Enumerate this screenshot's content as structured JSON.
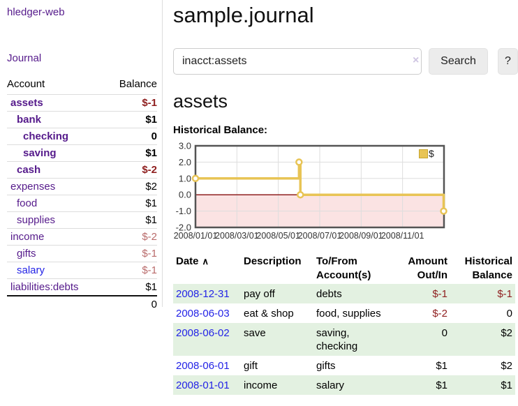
{
  "colors": {
    "link_purple": "#551a8b",
    "link_blue": "#2323e6",
    "negative_red": "#8f1f1f",
    "negative_soft_red": "#b96b6b",
    "row_stripe_green": "#e3f1e1",
    "chart_gold": "#e8c455",
    "chart_negative_fill": "#fbe3e3",
    "chart_zero_line": "#8f1f1f"
  },
  "sidebar": {
    "brand": "hledger-web",
    "journal_link": "Journal",
    "accounts_table": {
      "headers": {
        "account": "Account",
        "balance": "Balance"
      },
      "rows": [
        {
          "name": "assets",
          "level": 1,
          "bold": true,
          "balance": "$-1",
          "balance_style": "neg-strong"
        },
        {
          "name": "bank",
          "level": 2,
          "bold": true,
          "balance": "$1",
          "balance_style": "pos"
        },
        {
          "name": "checking",
          "level": 3,
          "bold": true,
          "balance": "0",
          "balance_style": "pos"
        },
        {
          "name": "saving",
          "level": 3,
          "bold": true,
          "balance": "$1",
          "balance_style": "pos"
        },
        {
          "name": "cash",
          "level": 2,
          "bold": true,
          "balance": "$-2",
          "balance_style": "neg-strong"
        },
        {
          "name": "expenses",
          "level": 1,
          "bold": false,
          "balance": "$2",
          "balance_style": "pos"
        },
        {
          "name": "food",
          "level": 2,
          "bold": false,
          "balance": "$1",
          "balance_style": "pos"
        },
        {
          "name": "supplies",
          "level": 2,
          "bold": false,
          "balance": "$1",
          "balance_style": "pos"
        },
        {
          "name": "income",
          "level": 1,
          "bold": false,
          "balance": "$-2",
          "balance_style": "neg-soft"
        },
        {
          "name": "gifts",
          "level": 2,
          "bold": false,
          "balance": "$-1",
          "balance_style": "neg-soft"
        },
        {
          "name": "salary",
          "level": 2,
          "bold": false,
          "link_color": "blue",
          "balance": "$-1",
          "balance_style": "neg-soft"
        },
        {
          "name": "liabilities:debts",
          "level": 1,
          "bold": false,
          "balance": "$1",
          "balance_style": "pos"
        }
      ],
      "total": "0"
    }
  },
  "main": {
    "title": "sample.journal",
    "search": {
      "value": "inacct:assets",
      "clear_icon": "×",
      "button_label": "Search",
      "help_button_label": "?"
    },
    "account_heading": "assets",
    "chart_label": "Historical Balance:",
    "register_table": {
      "headers": {
        "date": "Date",
        "sort_icon": "∧",
        "description": "Description",
        "accounts": "To/From Account(s)",
        "amount": "Amount Out/In",
        "balance": "Historical Balance"
      },
      "rows": [
        {
          "date": "2008-12-31",
          "description": "pay off",
          "accounts": "debts",
          "amount": "$-1",
          "balance": "$-1"
        },
        {
          "date": "2008-06-03",
          "description": "eat & shop",
          "accounts": "food, supplies",
          "amount": "$-2",
          "balance": "0"
        },
        {
          "date": "2008-06-02",
          "description": "save",
          "accounts": "saving, checking",
          "amount": "0",
          "balance": "$2"
        },
        {
          "date": "2008-06-01",
          "description": "gift",
          "accounts": "gifts",
          "amount": "$1",
          "balance": "$2"
        },
        {
          "date": "2008-01-01",
          "description": "income",
          "accounts": "salary",
          "amount": "$1",
          "balance": "$1"
        }
      ]
    }
  },
  "chart_data": {
    "type": "line",
    "step": true,
    "title": "Historical Balance:",
    "legend": "$",
    "series": [
      {
        "name": "$",
        "color": "#e8c455",
        "points": [
          [
            "2008-01-01",
            1
          ],
          [
            "2008-06-01",
            2
          ],
          [
            "2008-06-03",
            0
          ],
          [
            "2008-12-31",
            -1
          ]
        ]
      }
    ],
    "x_range": [
      "2008-01-01",
      "2009-01-01"
    ],
    "x_ticks": [
      {
        "label": "2008/01/01",
        "date": "2008-01-01"
      },
      {
        "label": "2008/03/01",
        "date": "2008-03-01"
      },
      {
        "label": "2008/05/01",
        "date": "2008-05-01"
      },
      {
        "label": "2008/07/01",
        "date": "2008-07-01"
      },
      {
        "label": "2008/09/01",
        "date": "2008-09-01"
      },
      {
        "label": "2008/11/01",
        "date": "2008-11-01"
      }
    ],
    "y_ticks": [
      3.0,
      2.0,
      1.0,
      0.0,
      -1.0,
      -2.0
    ],
    "ylim": [
      -2,
      3
    ],
    "grid": true,
    "legend_position": "top-right",
    "negative_fill": "#fbe3e3",
    "zero_line_color": "#8f1f1f"
  }
}
